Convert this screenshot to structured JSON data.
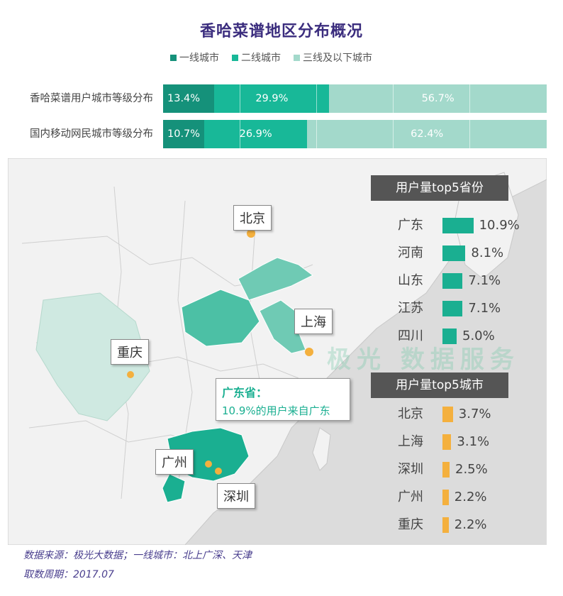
{
  "title": "香哈菜谱地区分布概况",
  "legend": [
    {
      "label": "一线城市",
      "color": "#15917a"
    },
    {
      "label": "二线城市",
      "color": "#18b898"
    },
    {
      "label": "三线及以下城市",
      "color": "#a3d9cb"
    }
  ],
  "chart_data": [
    {
      "type": "bar",
      "stacked": true,
      "orientation": "horizontal",
      "title": "香哈菜谱地区分布概况",
      "categories": [
        "香哈菜谱用户城市等级分布",
        "国内移动网民城市等级分布"
      ],
      "series": [
        {
          "name": "一线城市",
          "values": [
            13.4,
            10.7
          ],
          "labels": [
            "13.4%",
            "10.7%"
          ]
        },
        {
          "name": "二线城市",
          "values": [
            29.9,
            26.9
          ],
          "labels": [
            "29.9%",
            "26.9%"
          ]
        },
        {
          "name": "三线及以下城市",
          "values": [
            56.7,
            62.4
          ],
          "labels": [
            "56.7%",
            "62.4%"
          ]
        }
      ],
      "legend_position": "top"
    },
    {
      "type": "bar",
      "orientation": "horizontal",
      "title": "用户量top5省份",
      "categories": [
        "广东",
        "河南",
        "山东",
        "江苏",
        "四川"
      ],
      "values": [
        10.9,
        8.1,
        7.1,
        7.1,
        5.0
      ],
      "labels": [
        "10.9%",
        "8.1%",
        "7.1%",
        "7.1%",
        "5.0%"
      ],
      "color": "#1aaf91"
    },
    {
      "type": "bar",
      "orientation": "horizontal",
      "title": "用户量top5城市",
      "categories": [
        "北京",
        "上海",
        "深圳",
        "广州",
        "重庆"
      ],
      "values": [
        3.7,
        3.1,
        2.5,
        2.2,
        2.2
      ],
      "labels": [
        "3.7%",
        "3.1%",
        "2.5%",
        "2.2%",
        "2.2%"
      ],
      "color": "#f4b03e"
    }
  ],
  "map": {
    "watermark": "极光 数据服务",
    "cities": [
      "北京",
      "上海",
      "重庆",
      "广州",
      "深圳"
    ],
    "callout_title": "广东省：",
    "callout_text": "10.9%的用户来自广东"
  },
  "footer": {
    "source": "数据来源：极光大数据；一线城市：北上广深、天津",
    "period": "取数周期：2017.07"
  }
}
